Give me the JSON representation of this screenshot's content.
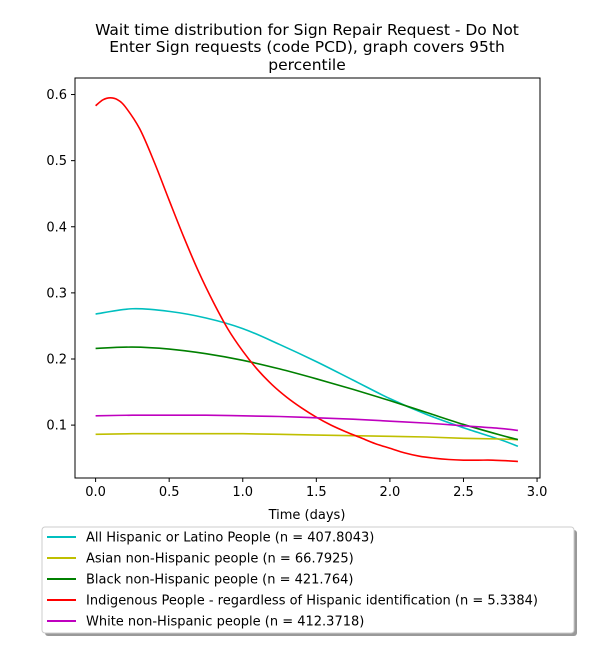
{
  "chart_data": {
    "type": "line",
    "title_lines": [
      "Wait time distribution  for Sign Repair Request - Do Not",
      "Enter Sign  requests (code PCD), graph covers 95th",
      "percentile"
    ],
    "xlabel": "Time (days)",
    "ylabel": "",
    "xlim": [
      -0.14,
      3.02
    ],
    "ylim": [
      0.02,
      0.625
    ],
    "xticks": [
      0.0,
      0.5,
      1.0,
      1.5,
      2.0,
      2.5,
      3.0
    ],
    "xtick_labels": [
      "0.0",
      "0.5",
      "1.0",
      "1.5",
      "2.0",
      "2.5",
      "3.0"
    ],
    "yticks": [
      0.1,
      0.2,
      0.3,
      0.4,
      0.5,
      0.6
    ],
    "ytick_labels": [
      "0.1",
      "0.2",
      "0.3",
      "0.4",
      "0.5",
      "0.6"
    ],
    "grid": false,
    "legend_placement": "below plot",
    "series": [
      {
        "name": "All Hispanic or Latino People (n = 407.8043)",
        "color": "#00bfbf",
        "x": [
          0.0,
          0.25,
          0.5,
          0.75,
          1.0,
          1.25,
          1.5,
          1.75,
          2.0,
          2.25,
          2.5,
          2.75,
          2.87
        ],
        "y": [
          0.268,
          0.276,
          0.272,
          0.262,
          0.246,
          0.222,
          0.196,
          0.168,
          0.14,
          0.116,
          0.096,
          0.078,
          0.068
        ]
      },
      {
        "name": "Asian non-Hispanic people (n = 66.7925)",
        "color": "#bfbf00",
        "x": [
          0.0,
          0.25,
          0.5,
          0.75,
          1.0,
          1.25,
          1.5,
          1.75,
          2.0,
          2.25,
          2.5,
          2.75,
          2.87
        ],
        "y": [
          0.086,
          0.087,
          0.087,
          0.087,
          0.087,
          0.086,
          0.085,
          0.084,
          0.083,
          0.082,
          0.08,
          0.079,
          0.078
        ]
      },
      {
        "name": "Black non-Hispanic people (n = 421.764)",
        "color": "#008000",
        "x": [
          0.0,
          0.25,
          0.5,
          0.75,
          1.0,
          1.25,
          1.5,
          1.75,
          2.0,
          2.25,
          2.5,
          2.75,
          2.87
        ],
        "y": [
          0.216,
          0.218,
          0.215,
          0.208,
          0.198,
          0.185,
          0.17,
          0.154,
          0.137,
          0.119,
          0.101,
          0.085,
          0.078
        ]
      },
      {
        "name": "Indigenous People - regardless of Hispanic identification (n = 5.3384)",
        "color": "#ff0000",
        "x": [
          0.0,
          0.05,
          0.1,
          0.15,
          0.2,
          0.3,
          0.4,
          0.5,
          0.6,
          0.7,
          0.8,
          0.9,
          1.0,
          1.1,
          1.2,
          1.3,
          1.4,
          1.5,
          1.6,
          1.7,
          1.8,
          1.9,
          2.0,
          2.1,
          2.2,
          2.3,
          2.4,
          2.5,
          2.6,
          2.7,
          2.8,
          2.87
        ],
        "y": [
          0.583,
          0.592,
          0.595,
          0.592,
          0.582,
          0.548,
          0.497,
          0.44,
          0.384,
          0.332,
          0.286,
          0.245,
          0.212,
          0.184,
          0.161,
          0.142,
          0.126,
          0.112,
          0.1,
          0.09,
          0.081,
          0.072,
          0.065,
          0.058,
          0.053,
          0.05,
          0.048,
          0.047,
          0.047,
          0.047,
          0.046,
          0.045
        ]
      },
      {
        "name": "White non-Hispanic people (n = 412.3718)",
        "color": "#bf00bf",
        "x": [
          0.0,
          0.25,
          0.5,
          0.75,
          1.0,
          1.25,
          1.5,
          1.75,
          2.0,
          2.25,
          2.5,
          2.75,
          2.87
        ],
        "y": [
          0.114,
          0.115,
          0.115,
          0.115,
          0.114,
          0.113,
          0.111,
          0.109,
          0.106,
          0.103,
          0.099,
          0.095,
          0.092
        ]
      }
    ]
  }
}
